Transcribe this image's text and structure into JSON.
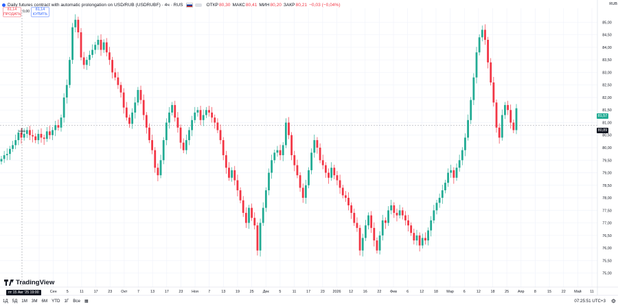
{
  "header": {
    "title": "Daily futures contract with automatic prolongation on USD/RUB (USDRUBF) · 4ч · RUS",
    "open_label": "ОТКР",
    "open_value": "80,30",
    "high_label": "МАКС",
    "high_value": "80,41",
    "low_label": "МИН",
    "low_value": "80,20",
    "close_label": "ЗАКР",
    "close_value": "80,21",
    "change_value": "−0,03 (−0,04%)"
  },
  "trade": {
    "sell_price": "81,14",
    "sell_label": "ПРОДАТЬ",
    "spread": "0,00",
    "buy_price": "81,14",
    "buy_label": "КУПИТЬ"
  },
  "axis": {
    "currency": "RUB",
    "last_price_badge": "81,57",
    "crosshair_badge": "80,89",
    "crosshair_time": "пт 15 Авг '25   19:00"
  },
  "bottom": {
    "brand": "TradingView",
    "timeframes": [
      "1Д",
      "5Д",
      "1М",
      "3М",
      "6М",
      "YTD",
      "1Г",
      "Все"
    ],
    "clock": "07:25:51 UTC+3"
  },
  "colors": {
    "up": "#22ab94",
    "down": "#f23645",
    "grid": "#f0f3fa",
    "crosshair": "#9598a1"
  },
  "chart_data": {
    "type": "candlestick",
    "title": "Daily futures contract with automatic prolongation on USD/RUB (USDRUBF)",
    "timeframe": "4ч",
    "ylim": [
      74.55,
      85.45
    ],
    "yticks": [
      75.0,
      75.5,
      76.0,
      76.5,
      77.0,
      77.5,
      78.0,
      78.5,
      79.0,
      79.5,
      80.0,
      80.5,
      81.0,
      81.5,
      82.0,
      82.5,
      83.0,
      83.5,
      84.0,
      84.5,
      85.0
    ],
    "ytick_labels": [
      "75,00",
      "75,50",
      "76,00",
      "76,50",
      "77,00",
      "77,50",
      "78,00",
      "78,50",
      "79,00",
      "79,50",
      "80,00",
      "80,50",
      "81,00",
      "81,50",
      "82,00",
      "82,50",
      "83,00",
      "83,50",
      "84,00",
      "84,50",
      "85,00"
    ],
    "xlabels": [
      "25",
      "Сен",
      "5",
      "11",
      "17",
      "23",
      "Окт",
      "7",
      "13",
      "17",
      "23",
      "Ноя",
      "7",
      "13",
      "19",
      "25",
      "Дек",
      "5",
      "11",
      "17",
      "23",
      "2026",
      "12",
      "16",
      "22",
      "Фев",
      "6",
      "12",
      "18",
      "Мар",
      "6",
      "12",
      "18",
      "25",
      "Апр",
      "8",
      "15",
      "22",
      "Май",
      "11"
    ],
    "series_close": [
      79.55,
      79.7,
      79.75,
      79.95,
      80.1,
      80.3,
      80.6,
      80.4,
      80.55,
      80.7,
      80.5,
      80.45,
      80.3,
      80.55,
      80.4,
      80.35,
      80.65,
      80.5,
      80.7,
      80.9,
      80.8,
      81.2,
      82.0,
      82.5,
      83.5,
      84.8,
      85.1,
      84.6,
      83.6,
      83.3,
      83.5,
      83.7,
      83.9,
      84.1,
      84.3,
      83.9,
      84.2,
      83.8,
      83.5,
      83.0,
      82.8,
      82.5,
      82.2,
      81.6,
      81.2,
      80.95,
      81.4,
      81.8,
      82.3,
      81.9,
      81.3,
      80.8,
      80.3,
      79.9,
      79.2,
      78.9,
      79.5,
      80.3,
      81.0,
      81.4,
      81.7,
      81.2,
      80.8,
      80.2,
      79.9,
      80.3,
      80.7,
      81.1,
      81.4,
      81.5,
      81.1,
      81.3,
      81.5,
      81.4,
      81.2,
      81.0,
      80.7,
      80.3,
      79.7,
      79.2,
      78.8,
      79.1,
      78.7,
      78.3,
      77.9,
      77.4,
      77.0,
      77.6,
      77.2,
      76.9,
      75.9,
      77.0,
      77.6,
      78.3,
      79.0,
      79.5,
      79.8,
      79.9,
      79.7,
      80.1,
      81.0,
      80.5,
      79.7,
      79.3,
      78.9,
      78.4,
      78.0,
      78.5,
      79.1,
      79.8,
      80.3,
      80.0,
      79.5,
      79.3,
      79.0,
      78.8,
      79.2,
      78.9,
      78.7,
      78.4,
      78.1,
      78.0,
      77.7,
      77.4,
      77.0,
      76.8,
      75.9,
      76.4,
      76.9,
      77.3,
      76.8,
      76.3,
      75.9,
      76.5,
      77.1,
      77.0,
      77.5,
      77.7,
      77.4,
      77.3,
      77.5,
      77.3,
      77.1,
      76.9,
      76.6,
      76.3,
      76.5,
      76.1,
      76.4,
      76.3,
      76.7,
      77.1,
      77.5,
      77.8,
      78.0,
      78.3,
      78.6,
      79.0,
      79.1,
      78.8,
      79.2,
      79.5,
      79.9,
      80.4,
      81.1,
      81.9,
      82.8,
      83.8,
      84.4,
      84.7,
      84.3,
      83.4,
      82.6,
      81.8,
      80.8,
      80.4,
      81.3,
      81.7,
      81.5,
      81.0,
      80.7,
      81.57
    ]
  }
}
